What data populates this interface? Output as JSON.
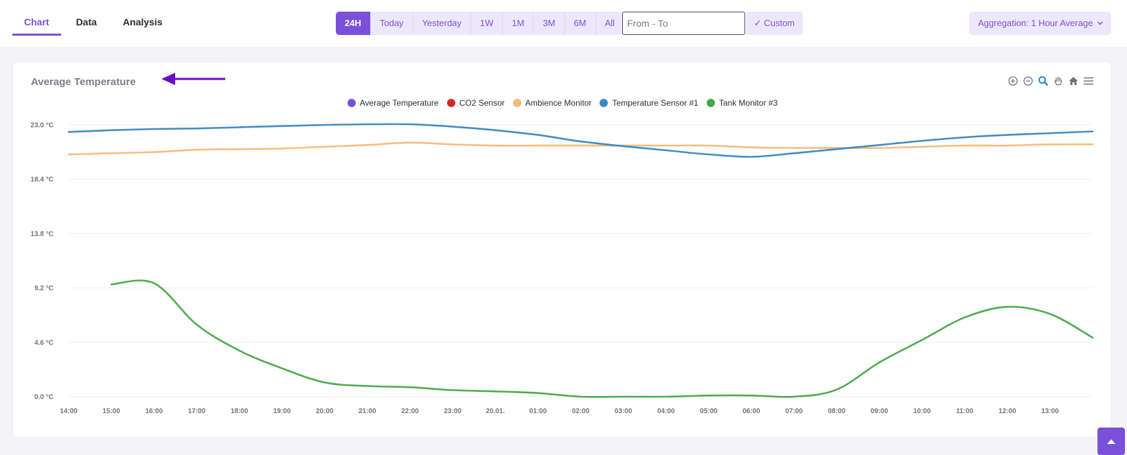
{
  "tabs": [
    {
      "label": "Chart",
      "active": true
    },
    {
      "label": "Data",
      "active": false
    },
    {
      "label": "Analysis",
      "active": false
    }
  ],
  "ranges": [
    "24H",
    "Today",
    "Yesterday",
    "1W",
    "1M",
    "3M",
    "6M",
    "All"
  ],
  "active_range": "24H",
  "date_field": {
    "placeholder": "From - To",
    "value": ""
  },
  "custom_button": "✓ Custom",
  "aggregation": {
    "label": "Aggregation: 1 Hour Average"
  },
  "toolbar_icons": [
    "zoom-in-icon",
    "zoom-out-icon",
    "zoom-select-icon",
    "pan-hand-icon",
    "home-reset-icon",
    "menu-icon"
  ],
  "colors": {
    "accent": "#7a4fd9",
    "accent_light": "#ede7fb"
  },
  "chart_data": {
    "type": "line",
    "title": "Average Temperature",
    "ylim": [
      0,
      23
    ],
    "y_ticks": [
      "23.0 °C",
      "18.4 °C",
      "13.8 °C",
      "9.2 °C",
      "4.6 °C",
      "0.0 °C"
    ],
    "y_tick_values": [
      23,
      18.4,
      13.8,
      9.2,
      4.6,
      0
    ],
    "x_labels": [
      "14:00",
      "15:00",
      "16:00",
      "17:00",
      "18:00",
      "19:00",
      "20:00",
      "21:00",
      "22:00",
      "23:00",
      "20.01.",
      "01:00",
      "02:00",
      "03:00",
      "04:00",
      "05:00",
      "06:00",
      "07:00",
      "08:00",
      "09:00",
      "10:00",
      "11:00",
      "12:00",
      "13:00"
    ],
    "grid": true,
    "legend_position": "top-center",
    "series": [
      {
        "name": "Average Temperature",
        "color": "#7a4fd9",
        "hours": [],
        "values": []
      },
      {
        "name": "CO2 Sensor",
        "color": "#d62728",
        "hours": [],
        "values": []
      },
      {
        "name": "Ambience Monitor",
        "color": "#f5b97a",
        "hours": [
          0,
          1,
          2,
          3,
          4,
          5,
          6,
          7,
          8,
          9,
          10,
          11,
          12,
          13,
          14,
          15,
          16,
          17,
          18,
          19,
          20,
          21,
          22,
          23,
          24
        ],
        "values": [
          20.5,
          20.6,
          20.7,
          20.9,
          20.95,
          21.0,
          21.15,
          21.3,
          21.5,
          21.35,
          21.25,
          21.25,
          21.25,
          21.25,
          21.25,
          21.25,
          21.1,
          21.05,
          21.05,
          21.05,
          21.15,
          21.25,
          21.25,
          21.35,
          21.35
        ]
      },
      {
        "name": "Temperature Sensor #1",
        "color": "#3a87c0",
        "hours": [
          0,
          1,
          2,
          3,
          4,
          5,
          6,
          7,
          8,
          9,
          10,
          11,
          12,
          13,
          14,
          15,
          16,
          17,
          18,
          19,
          20,
          21,
          22,
          23,
          24
        ],
        "values": [
          22.4,
          22.55,
          22.65,
          22.7,
          22.8,
          22.9,
          23.0,
          23.05,
          23.05,
          22.85,
          22.55,
          22.15,
          21.6,
          21.2,
          20.85,
          20.5,
          20.3,
          20.6,
          20.95,
          21.3,
          21.65,
          21.95,
          22.15,
          22.3,
          22.45
        ]
      },
      {
        "name": "Tank Monitor #3",
        "color": "#43a843",
        "hours": [
          1,
          2,
          3,
          4,
          5,
          6,
          7,
          8,
          9,
          10,
          11,
          12,
          13,
          14,
          15,
          16,
          17,
          18,
          19,
          20,
          21,
          22,
          23,
          24
        ],
        "values": [
          9.5,
          9.6,
          6.1,
          3.9,
          2.4,
          1.2,
          0.9,
          0.8,
          0.55,
          0.45,
          0.3,
          0.0,
          0.0,
          0.0,
          0.1,
          0.1,
          0.0,
          0.6,
          2.9,
          4.8,
          6.7,
          7.6,
          7.0,
          5.0
        ]
      }
    ]
  }
}
